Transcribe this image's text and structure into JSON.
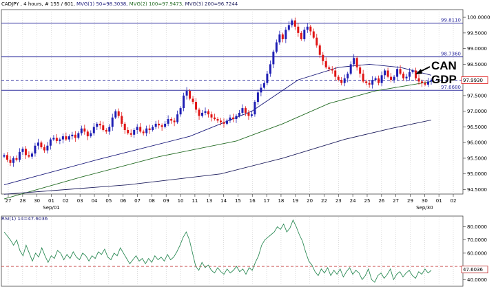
{
  "header": {
    "symbol_info": "CADJPY , 4 hours, # 155 / 601,",
    "ma1": "MVG(1) 50=98.3038,",
    "ma2": "MVG(2) 100=97.9473,",
    "ma3": "MVG(3) 200=96.7244"
  },
  "rsi_header": "RSI(1) 14=47.6036",
  "annotation": {
    "line1": "CAN",
    "line2": "GDP"
  },
  "colors": {
    "bull": "#1f1fb4",
    "bear": "#e01515",
    "ma1": "#1a1a7a",
    "ma2": "#236b23",
    "ma3": "#1c1c5c",
    "hline": "#3232a0",
    "rsi_line": "#2e8b57",
    "rsi_level": "#c03030",
    "grid": "#c8c8c8"
  },
  "chart_data": [
    {
      "type": "candlestick",
      "title": "CADJPY 4 hours",
      "ylim": [
        94.4,
        100.2
      ],
      "y_ticks": [
        "100.0000",
        "99.5000",
        "99.0000",
        "98.5000",
        "98.0000",
        "97.5000",
        "97.0000",
        "96.5000",
        "96.0000",
        "95.5000",
        "95.0000",
        "94.5000"
      ],
      "x_ticks": [
        "27",
        "28",
        "30",
        "01",
        "02",
        "03",
        "04",
        "05",
        "06",
        "07",
        "08",
        "09",
        "10",
        "11",
        "13",
        "14",
        "15",
        "16",
        "17",
        "18",
        "19",
        "20",
        "22",
        "23",
        "24",
        "25",
        "26",
        "27",
        "29",
        "30",
        "01",
        "02"
      ],
      "x_month_labels": [
        "Sep/01",
        "Sep/30"
      ],
      "close": [
        95.6,
        95.45,
        95.35,
        95.5,
        95.45,
        95.7,
        95.8,
        95.6,
        95.55,
        95.65,
        95.9,
        96.0,
        95.85,
        95.75,
        95.9,
        96.1,
        96.15,
        96.05,
        96.1,
        96.2,
        96.1,
        96.2,
        96.25,
        96.15,
        96.3,
        96.45,
        96.35,
        96.2,
        96.3,
        96.5,
        96.6,
        96.55,
        96.4,
        96.35,
        96.5,
        96.8,
        97.0,
        96.85,
        96.6,
        96.4,
        96.3,
        96.25,
        96.4,
        96.5,
        96.35,
        96.3,
        96.45,
        96.4,
        96.5,
        96.6,
        96.55,
        96.5,
        96.6,
        96.75,
        96.7,
        96.65,
        96.9,
        97.1,
        97.5,
        97.65,
        97.4,
        97.3,
        97.05,
        96.85,
        96.95,
        97.0,
        96.9,
        96.8,
        96.75,
        96.7,
        96.65,
        96.6,
        96.7,
        96.8,
        96.75,
        96.85,
        96.95,
        97.1,
        96.95,
        96.85,
        96.9,
        97.3,
        97.6,
        97.75,
        97.9,
        98.2,
        98.5,
        98.9,
        99.2,
        99.45,
        99.3,
        99.6,
        99.75,
        99.9,
        99.7,
        99.5,
        99.3,
        99.6,
        99.7,
        99.55,
        99.35,
        99.1,
        98.8,
        98.6,
        98.4,
        98.35,
        98.3,
        98.1,
        98.0,
        97.9,
        98.05,
        98.2,
        98.5,
        98.7,
        98.4,
        98.2,
        97.95,
        97.9,
        97.85,
        98.0,
        98.05,
        97.9,
        98.15,
        98.3,
        98.1,
        98.0,
        98.1,
        98.35,
        98.2,
        98.05,
        98.1,
        98.25,
        98.3,
        98.05,
        97.95,
        97.9,
        97.85,
        97.95,
        97.99
      ],
      "series": [
        {
          "name": "MVG(1) 50",
          "points": [
            [
              0,
              94.65
            ],
            [
              30,
              95.45
            ],
            [
              60,
              96.2
            ],
            [
              80,
              97.0
            ],
            [
              95,
              98.0
            ],
            [
              108,
              98.4
            ],
            [
              118,
              98.5
            ],
            [
              128,
              98.4
            ],
            [
              138,
              98.15
            ]
          ]
        },
        {
          "name": "MVG(2) 100",
          "points": [
            [
              0,
              94.2
            ],
            [
              25,
              94.9
            ],
            [
              50,
              95.55
            ],
            [
              75,
              96.05
            ],
            [
              90,
              96.6
            ],
            [
              105,
              97.25
            ],
            [
              120,
              97.65
            ],
            [
              138,
              97.95
            ]
          ]
        },
        {
          "name": "MVG(3) 200",
          "points": [
            [
              0,
              94.35
            ],
            [
              40,
              94.65
            ],
            [
              70,
              95.0
            ],
            [
              90,
              95.5
            ],
            [
              110,
              96.1
            ],
            [
              125,
              96.45
            ],
            [
              138,
              96.72
            ]
          ]
        }
      ],
      "hlines": [
        {
          "value": 99.811,
          "label": "99.8110",
          "style": "solid"
        },
        {
          "value": 98.736,
          "label": "98.7360",
          "style": "solid"
        },
        {
          "value": 97.993,
          "label": "97.9930",
          "style": "dashed"
        },
        {
          "value": 97.668,
          "label": "97.6680",
          "style": "solid"
        }
      ],
      "current_price": {
        "value": 97.993,
        "label": "97.9930"
      }
    },
    {
      "type": "line",
      "title": "RSI(1) 14=47.6036",
      "ylim": [
        36,
        87
      ],
      "y_ticks": [
        "80.0000",
        "70.0000",
        "60.0000",
        "40.0000"
      ],
      "current_value": {
        "value": 47.6036,
        "label": "47.6036"
      },
      "level_line": 50,
      "values": [
        76,
        73,
        70,
        66,
        70,
        62,
        58,
        66,
        60,
        54,
        60,
        57,
        64,
        58,
        53,
        58,
        56,
        62,
        60,
        55,
        59,
        56,
        61,
        57,
        55,
        60,
        58,
        54,
        58,
        56,
        61,
        59,
        63,
        57,
        55,
        60,
        58,
        64,
        60,
        56,
        52,
        55,
        58,
        54,
        56,
        52,
        56,
        53,
        58,
        55,
        57,
        54,
        59,
        55,
        57,
        61,
        66,
        72,
        76,
        70,
        60,
        50,
        47,
        53,
        49,
        51,
        47,
        45,
        49,
        46,
        44,
        48,
        45,
        47,
        50,
        46,
        48,
        44,
        49,
        47,
        53,
        58,
        66,
        70,
        72,
        74,
        76,
        80,
        78,
        82,
        76,
        79,
        85,
        80,
        74,
        69,
        61,
        54,
        51,
        46,
        43,
        48,
        45,
        49,
        43,
        47,
        44,
        48,
        42,
        46,
        49,
        44,
        47,
        45,
        40,
        43,
        48,
        40,
        38,
        43,
        45,
        41,
        44,
        48,
        40,
        44,
        46,
        42,
        45,
        47,
        43,
        41,
        46,
        44,
        48,
        45,
        47
      ]
    }
  ]
}
